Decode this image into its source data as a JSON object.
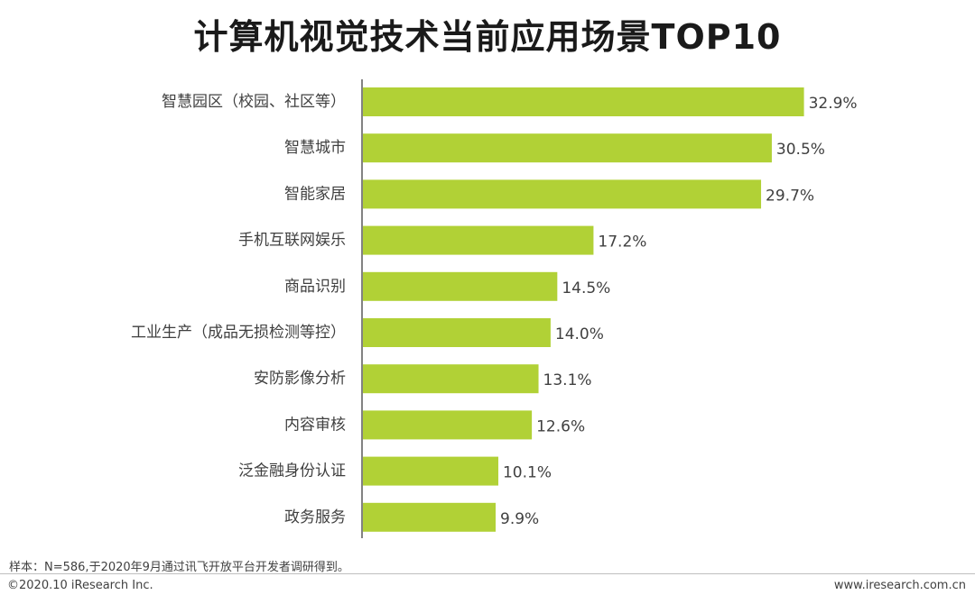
{
  "chart_data": {
    "type": "bar",
    "orientation": "horizontal",
    "title": "计算机视觉技术当前应用场景TOP10",
    "categories": [
      "智慧园区（校园、社区等）",
      "智慧城市",
      "智能家居",
      "手机互联网娱乐",
      "商品识别",
      "工业生产（成品无损检测等控）",
      "安防影像分析",
      "内容审核",
      "泛金融身份认证",
      "政务服务"
    ],
    "values": [
      32.9,
      30.5,
      29.7,
      17.2,
      14.5,
      14.0,
      13.1,
      12.6,
      10.1,
      9.9
    ],
    "value_labels": [
      "32.9%",
      "30.5%",
      "29.7%",
      "17.2%",
      "14.5%",
      "14.0%",
      "13.1%",
      "12.6%",
      "10.1%",
      "9.9%"
    ],
    "unit": "%",
    "xlim": [
      0,
      35
    ],
    "grid": false,
    "legend": "none",
    "bar_color": "#b1d136"
  },
  "footer": {
    "note": "样本：N=586,于2020年9月通过讯飞开放平台开发者调研得到。",
    "copyright": "©2020.10 iResearch Inc.",
    "website": "www.iresearch.com.cn"
  }
}
